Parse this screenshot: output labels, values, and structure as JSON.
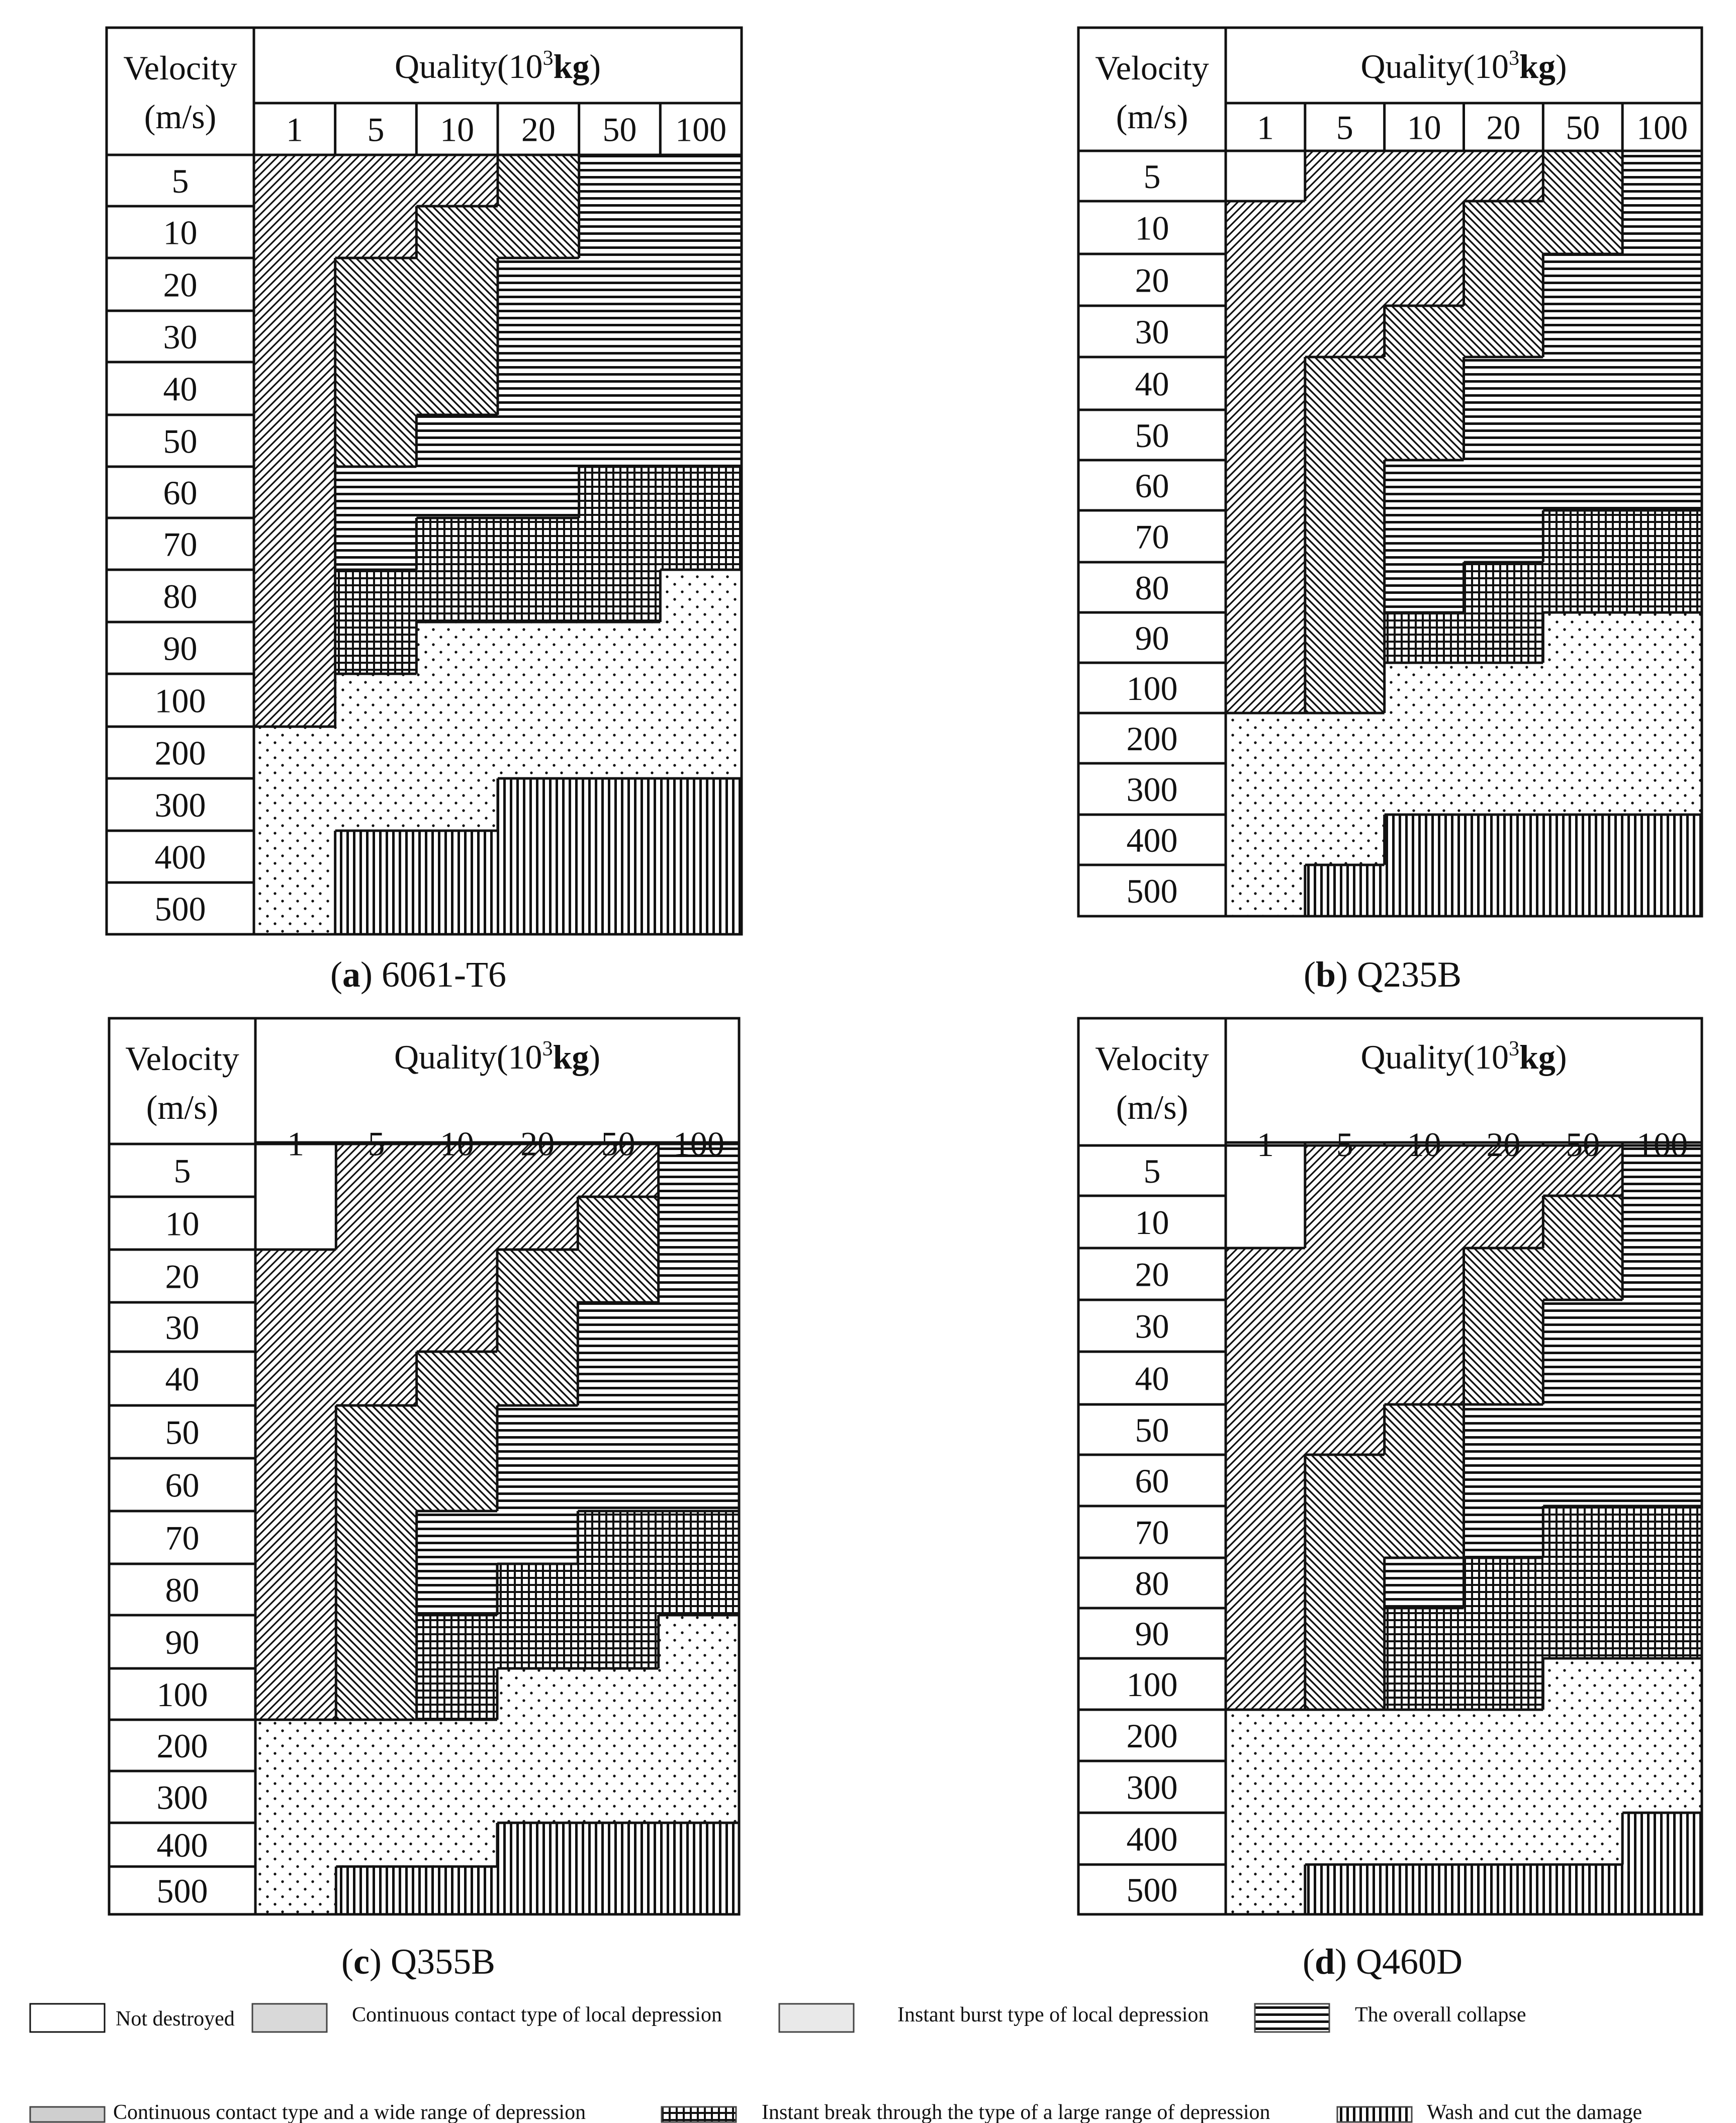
{
  "colors": {
    "ink": "#111111",
    "background": "#ffffff",
    "legend_shade": "#d9d9d9"
  },
  "header": {
    "velocity_label": "Velocity",
    "velocity_unit": "(m/s)",
    "quality_label": "Quality(10",
    "quality_exp": "3",
    "quality_unit": "kg",
    "quality_close": ")"
  },
  "legend": [
    {
      "key": "none",
      "label": "Not destroyed"
    },
    {
      "key": "cc",
      "label": "Continuous contact type of local depression"
    },
    {
      "key": "ib",
      "label": "Instant burst type of local depression"
    },
    {
      "key": "oc",
      "label": "The overall collapse"
    },
    {
      "key": "ccw",
      "label": "Continuous contact type and a wide range of depression"
    },
    {
      "key": "ibl",
      "label": "Instant break through the type of a large range of depression"
    },
    {
      "key": "wc",
      "label": "Wash and cut the damage"
    }
  ],
  "chart_data": [
    {
      "type": "heatmap",
      "panel_letter": "a",
      "material": "6061-T6",
      "x_name": "Quality(10^3 kg)",
      "y_name": "Velocity (m/s)",
      "x": [
        "1",
        "5",
        "10",
        "20",
        "50",
        "100"
      ],
      "y": [
        "5",
        "10",
        "20",
        "30",
        "40",
        "50",
        "60",
        "70",
        "80",
        "90",
        "100",
        "200",
        "300",
        "400",
        "500"
      ],
      "z": [
        [
          "cc",
          "cc",
          "cc",
          "ccw",
          "oc",
          "oc"
        ],
        [
          "cc",
          "cc",
          "ccw",
          "ccw",
          "oc",
          "oc"
        ],
        [
          "cc",
          "ccw",
          "ccw",
          "oc",
          "oc",
          "oc"
        ],
        [
          "cc",
          "ccw",
          "ccw",
          "oc",
          "oc",
          "oc"
        ],
        [
          "cc",
          "ccw",
          "ccw",
          "oc",
          "oc",
          "oc"
        ],
        [
          "cc",
          "ccw",
          "oc",
          "oc",
          "oc",
          "oc"
        ],
        [
          "cc",
          "oc",
          "oc",
          "oc",
          "ibl",
          "ibl"
        ],
        [
          "cc",
          "oc",
          "ibl",
          "ibl",
          "ibl",
          "ibl"
        ],
        [
          "cc",
          "ibl",
          "ibl",
          "ibl",
          "ibl",
          "ib"
        ],
        [
          "cc",
          "ibl",
          "ib",
          "ib",
          "ib",
          "ib"
        ],
        [
          "cc",
          "ib",
          "ib",
          "ib",
          "ib",
          "ib"
        ],
        [
          "ib",
          "ib",
          "ib",
          "ib",
          "ib",
          "ib"
        ],
        [
          "ib",
          "ib",
          "ib",
          "wc",
          "wc",
          "wc"
        ],
        [
          "ib",
          "wc",
          "wc",
          "wc",
          "wc",
          "wc"
        ],
        [
          "ib",
          "wc",
          "wc",
          "wc",
          "wc",
          "wc"
        ]
      ]
    },
    {
      "type": "heatmap",
      "panel_letter": "b",
      "material": "Q235B",
      "x_name": "Quality(10^3 kg)",
      "y_name": "Velocity (m/s)",
      "x": [
        "1",
        "5",
        "10",
        "20",
        "50",
        "100"
      ],
      "y": [
        "5",
        "10",
        "20",
        "30",
        "40",
        "50",
        "60",
        "70",
        "80",
        "90",
        "100",
        "200",
        "300",
        "400",
        "500"
      ],
      "z": [
        [
          "none",
          "cc",
          "cc",
          "cc",
          "ccw",
          "oc"
        ],
        [
          "cc",
          "cc",
          "cc",
          "ccw",
          "ccw",
          "oc"
        ],
        [
          "cc",
          "cc",
          "cc",
          "ccw",
          "oc",
          "oc"
        ],
        [
          "cc",
          "cc",
          "ccw",
          "ccw",
          "oc",
          "oc"
        ],
        [
          "cc",
          "ccw",
          "ccw",
          "oc",
          "oc",
          "oc"
        ],
        [
          "cc",
          "ccw",
          "ccw",
          "oc",
          "oc",
          "oc"
        ],
        [
          "cc",
          "ccw",
          "oc",
          "oc",
          "oc",
          "oc"
        ],
        [
          "cc",
          "ccw",
          "oc",
          "oc",
          "ibl",
          "ibl"
        ],
        [
          "cc",
          "ccw",
          "oc",
          "ibl",
          "ibl",
          "ibl"
        ],
        [
          "cc",
          "ccw",
          "ibl",
          "ibl",
          "ib",
          "ib"
        ],
        [
          "cc",
          "ccw",
          "ib",
          "ib",
          "ib",
          "ib"
        ],
        [
          "ib",
          "ib",
          "ib",
          "ib",
          "ib",
          "ib"
        ],
        [
          "ib",
          "ib",
          "ib",
          "ib",
          "ib",
          "ib"
        ],
        [
          "ib",
          "ib",
          "wc",
          "wc",
          "wc",
          "wc"
        ],
        [
          "ib",
          "wc",
          "wc",
          "wc",
          "wc",
          "wc"
        ]
      ]
    },
    {
      "type": "heatmap",
      "panel_letter": "c",
      "material": "Q355B",
      "x_name": "Quality(10^3 kg)",
      "y_name": "Velocity (m/s)",
      "x": [
        "1",
        "5",
        "10",
        "20",
        "50",
        "100"
      ],
      "y": [
        "5",
        "10",
        "20",
        "30",
        "40",
        "50",
        "60",
        "70",
        "80",
        "90",
        "100",
        "200",
        "300",
        "400",
        "500"
      ],
      "z": [
        [
          "none",
          "cc",
          "cc",
          "cc",
          "cc",
          "oc"
        ],
        [
          "none",
          "cc",
          "cc",
          "cc",
          "ccw",
          "oc"
        ],
        [
          "cc",
          "cc",
          "cc",
          "ccw",
          "ccw",
          "oc"
        ],
        [
          "cc",
          "cc",
          "cc",
          "ccw",
          "oc",
          "oc"
        ],
        [
          "cc",
          "cc",
          "ccw",
          "ccw",
          "oc",
          "oc"
        ],
        [
          "cc",
          "ccw",
          "ccw",
          "oc",
          "oc",
          "oc"
        ],
        [
          "cc",
          "ccw",
          "ccw",
          "oc",
          "oc",
          "oc"
        ],
        [
          "cc",
          "ccw",
          "oc",
          "oc",
          "ibl",
          "ibl"
        ],
        [
          "cc",
          "ccw",
          "oc",
          "ibl",
          "ibl",
          "ibl"
        ],
        [
          "cc",
          "ccw",
          "ibl",
          "ibl",
          "ibl",
          "ib"
        ],
        [
          "cc",
          "ccw",
          "ibl",
          "ib",
          "ib",
          "ib"
        ],
        [
          "ib",
          "ib",
          "ib",
          "ib",
          "ib",
          "ib"
        ],
        [
          "ib",
          "ib",
          "ib",
          "ib",
          "ib",
          "ib"
        ],
        [
          "ib",
          "ib",
          "ib",
          "wc",
          "wc",
          "wc"
        ],
        [
          "ib",
          "wc",
          "wc",
          "wc",
          "wc",
          "wc"
        ]
      ]
    },
    {
      "type": "heatmap",
      "panel_letter": "d",
      "material": "Q460D",
      "x_name": "Quality(10^3 kg)",
      "y_name": "Velocity (m/s)",
      "x": [
        "1",
        "5",
        "10",
        "20",
        "50",
        "100"
      ],
      "y": [
        "5",
        "10",
        "20",
        "30",
        "40",
        "50",
        "60",
        "70",
        "80",
        "90",
        "100",
        "200",
        "300",
        "400",
        "500"
      ],
      "z": [
        [
          "none",
          "cc",
          "cc",
          "cc",
          "cc",
          "oc"
        ],
        [
          "none",
          "cc",
          "cc",
          "cc",
          "ccw",
          "oc"
        ],
        [
          "cc",
          "cc",
          "cc",
          "ccw",
          "ccw",
          "oc"
        ],
        [
          "cc",
          "cc",
          "cc",
          "ccw",
          "oc",
          "oc"
        ],
        [
          "cc",
          "cc",
          "cc",
          "ccw",
          "oc",
          "oc"
        ],
        [
          "cc",
          "cc",
          "ccw",
          "oc",
          "oc",
          "oc"
        ],
        [
          "cc",
          "ccw",
          "ccw",
          "oc",
          "oc",
          "oc"
        ],
        [
          "cc",
          "ccw",
          "ccw",
          "oc",
          "ibl",
          "ibl"
        ],
        [
          "cc",
          "ccw",
          "oc",
          "ibl",
          "ibl",
          "ibl"
        ],
        [
          "cc",
          "ccw",
          "ibl",
          "ibl",
          "ibl",
          "ibl"
        ],
        [
          "cc",
          "ccw",
          "ibl",
          "ibl",
          "ib",
          "ib"
        ],
        [
          "ib",
          "ib",
          "ib",
          "ib",
          "ib",
          "ib"
        ],
        [
          "ib",
          "ib",
          "ib",
          "ib",
          "ib",
          "ib"
        ],
        [
          "ib",
          "ib",
          "ib",
          "ib",
          "ib",
          "wc"
        ],
        [
          "ib",
          "wc",
          "wc",
          "wc",
          "wc",
          "wc"
        ]
      ]
    }
  ]
}
